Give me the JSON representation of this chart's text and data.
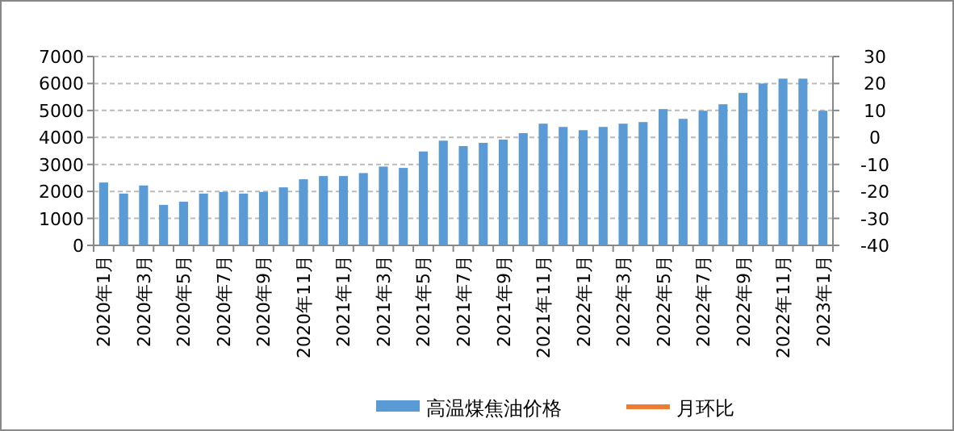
{
  "chart_data": {
    "type": "bar",
    "categories": [
      "2020年1月",
      null,
      "2020年3月",
      null,
      "2020年5月",
      null,
      "2020年7月",
      null,
      "2020年9月",
      null,
      "2020年11月",
      null,
      "2021年1月",
      null,
      "2021年3月",
      null,
      "2021年5月",
      null,
      "2021年7月",
      null,
      "2021年9月",
      null,
      "2021年11月",
      null,
      "2022年1月",
      null,
      "2022年3月",
      null,
      "2022年5月",
      null,
      "2022年7月",
      null,
      "2022年9月",
      null,
      "2022年11月",
      null,
      "2023年1月"
    ],
    "series": [
      {
        "name": "高温煤焦油价格",
        "color": "#5b9bd5",
        "values": [
          2330,
          1920,
          2220,
          1500,
          1620,
          1920,
          1980,
          1920,
          1980,
          2150,
          2450,
          2570,
          2570,
          2680,
          2920,
          2870,
          3480,
          3880,
          3680,
          3800,
          3920,
          4160,
          4510,
          4390,
          4270,
          4390,
          4510,
          4570,
          5050,
          4690,
          4990,
          5230,
          5650,
          6000,
          6180,
          6180,
          4990
        ]
      },
      {
        "name": "月环比",
        "type": "line",
        "color": "#ed7d31",
        "values": [
          null,
          null,
          null,
          null,
          null,
          null,
          null,
          null,
          null,
          null,
          null,
          null,
          null,
          null,
          null,
          null,
          null,
          null,
          null,
          null,
          null,
          null,
          null,
          null,
          null,
          null,
          null,
          null,
          null,
          null,
          null,
          null,
          null,
          null,
          null,
          null,
          null
        ]
      }
    ],
    "ylim": [
      0,
      7000
    ],
    "yticks": [
      0,
      1000,
      2000,
      3000,
      4000,
      5000,
      6000,
      7000
    ],
    "y2lim": [
      -40,
      30
    ],
    "y2ticks": [
      -40,
      -30,
      -20,
      -10,
      0,
      10,
      20,
      30
    ],
    "grid": "y",
    "legend": "bottom"
  }
}
